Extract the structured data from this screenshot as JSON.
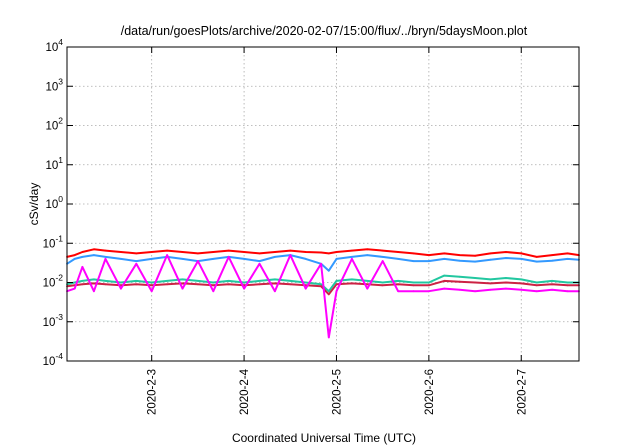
{
  "chart_data": {
    "type": "line",
    "title": "/data/run/goesPlots/archive/2020-02-07/15:00/flux/../bryn/5daysMoon.plot",
    "xlabel": "Coordinated Universal Time (UTC)",
    "ylabel": "cSv/day",
    "yscale": "log",
    "ylim": [
      0.0001,
      10000
    ],
    "yticks": [
      {
        "base": "10",
        "exp": "-4",
        "value": 0.0001
      },
      {
        "base": "10",
        "exp": "-3",
        "value": 0.001
      },
      {
        "base": "10",
        "exp": "-2",
        "value": 0.01
      },
      {
        "base": "10",
        "exp": "-1",
        "value": 0.1
      },
      {
        "base": "10",
        "exp": "0",
        "value": 1
      },
      {
        "base": "10",
        "exp": "1",
        "value": 10
      },
      {
        "base": "10",
        "exp": "2",
        "value": 100
      },
      {
        "base": "10",
        "exp": "3",
        "value": 1000
      },
      {
        "base": "10",
        "exp": "4",
        "value": 10000
      }
    ],
    "xlim": [
      "2020-02-02T02:00",
      "2020-02-07T15:00"
    ],
    "xticks": [
      {
        "label": "2020-2-3",
        "date": "2020-02-03T00:00"
      },
      {
        "label": "2020-2-4",
        "date": "2020-02-04T00:00"
      },
      {
        "label": "2020-2-5",
        "date": "2020-02-05T00:00"
      },
      {
        "label": "2020-2-6",
        "date": "2020-02-06T00:00"
      },
      {
        "label": "2020-2-7",
        "date": "2020-02-07T00:00"
      }
    ],
    "grid": true,
    "series": [
      {
        "color": "#ff0000",
        "x": [
          "2020-02-02T02:00",
          "2020-02-02T04:00",
          "2020-02-02T06:00",
          "2020-02-02T09:00",
          "2020-02-02T12:00",
          "2020-02-02T16:00",
          "2020-02-02T20:00",
          "2020-02-03T00:00",
          "2020-02-03T04:00",
          "2020-02-03T08:00",
          "2020-02-03T12:00",
          "2020-02-03T16:00",
          "2020-02-03T20:00",
          "2020-02-04T00:00",
          "2020-02-04T04:00",
          "2020-02-04T08:00",
          "2020-02-04T12:00",
          "2020-02-04T16:00",
          "2020-02-04T20:00",
          "2020-02-04T22:00",
          "2020-02-05T00:00",
          "2020-02-05T04:00",
          "2020-02-05T08:00",
          "2020-02-05T12:00",
          "2020-02-05T16:00",
          "2020-02-05T20:00",
          "2020-02-06T00:00",
          "2020-02-06T04:00",
          "2020-02-06T08:00",
          "2020-02-06T12:00",
          "2020-02-06T16:00",
          "2020-02-06T20:00",
          "2020-02-07T00:00",
          "2020-02-07T04:00",
          "2020-02-07T08:00",
          "2020-02-07T12:00",
          "2020-02-07T15:00"
        ],
        "values": [
          0.045,
          0.05,
          0.06,
          0.07,
          0.065,
          0.06,
          0.055,
          0.06,
          0.065,
          0.06,
          0.055,
          0.06,
          0.065,
          0.06,
          0.055,
          0.06,
          0.065,
          0.06,
          0.058,
          0.055,
          0.06,
          0.065,
          0.07,
          0.065,
          0.06,
          0.055,
          0.05,
          0.055,
          0.05,
          0.048,
          0.055,
          0.06,
          0.055,
          0.045,
          0.05,
          0.055,
          0.05
        ]
      },
      {
        "color": "#3399ff",
        "x": [
          "2020-02-02T02:00",
          "2020-02-02T04:00",
          "2020-02-02T06:00",
          "2020-02-02T09:00",
          "2020-02-02T12:00",
          "2020-02-02T16:00",
          "2020-02-02T20:00",
          "2020-02-03T00:00",
          "2020-02-03T04:00",
          "2020-02-03T08:00",
          "2020-02-03T12:00",
          "2020-02-03T16:00",
          "2020-02-03T20:00",
          "2020-02-04T00:00",
          "2020-02-04T04:00",
          "2020-02-04T08:00",
          "2020-02-04T12:00",
          "2020-02-04T16:00",
          "2020-02-04T20:00",
          "2020-02-04T22:00",
          "2020-02-05T00:00",
          "2020-02-05T04:00",
          "2020-02-05T08:00",
          "2020-02-05T12:00",
          "2020-02-05T16:00",
          "2020-02-05T20:00",
          "2020-02-06T00:00",
          "2020-02-06T04:00",
          "2020-02-06T08:00",
          "2020-02-06T12:00",
          "2020-02-06T16:00",
          "2020-02-06T20:00",
          "2020-02-07T00:00",
          "2020-02-07T04:00",
          "2020-02-07T08:00",
          "2020-02-07T12:00",
          "2020-02-07T15:00"
        ],
        "values": [
          0.03,
          0.04,
          0.045,
          0.05,
          0.045,
          0.04,
          0.035,
          0.04,
          0.045,
          0.04,
          0.035,
          0.04,
          0.045,
          0.04,
          0.035,
          0.045,
          0.05,
          0.04,
          0.03,
          0.02,
          0.04,
          0.045,
          0.05,
          0.045,
          0.04,
          0.035,
          0.035,
          0.04,
          0.036,
          0.034,
          0.038,
          0.042,
          0.04,
          0.034,
          0.036,
          0.04,
          0.038
        ]
      },
      {
        "color": "#22c7a0",
        "x": [
          "2020-02-02T02:00",
          "2020-02-02T04:00",
          "2020-02-02T06:00",
          "2020-02-02T09:00",
          "2020-02-02T12:00",
          "2020-02-02T16:00",
          "2020-02-02T20:00",
          "2020-02-03T00:00",
          "2020-02-03T04:00",
          "2020-02-03T08:00",
          "2020-02-03T12:00",
          "2020-02-03T16:00",
          "2020-02-03T20:00",
          "2020-02-04T00:00",
          "2020-02-04T04:00",
          "2020-02-04T08:00",
          "2020-02-04T12:00",
          "2020-02-04T16:00",
          "2020-02-04T20:00",
          "2020-02-04T22:00",
          "2020-02-05T00:00",
          "2020-02-05T04:00",
          "2020-02-05T08:00",
          "2020-02-05T12:00",
          "2020-02-05T16:00",
          "2020-02-05T20:00",
          "2020-02-06T00:00",
          "2020-02-06T04:00",
          "2020-02-06T08:00",
          "2020-02-06T12:00",
          "2020-02-06T16:00",
          "2020-02-06T20:00",
          "2020-02-07T00:00",
          "2020-02-07T04:00",
          "2020-02-07T08:00",
          "2020-02-07T12:00",
          "2020-02-07T15:00"
        ],
        "values": [
          0.009,
          0.01,
          0.011,
          0.012,
          0.011,
          0.01,
          0.011,
          0.01,
          0.011,
          0.012,
          0.011,
          0.01,
          0.011,
          0.01,
          0.011,
          0.012,
          0.011,
          0.01,
          0.009,
          0.006,
          0.011,
          0.012,
          0.011,
          0.01,
          0.011,
          0.01,
          0.01,
          0.015,
          0.014,
          0.013,
          0.012,
          0.013,
          0.012,
          0.01,
          0.011,
          0.01,
          0.01
        ]
      },
      {
        "color": "#cc2244",
        "x": [
          "2020-02-02T02:00",
          "2020-02-02T04:00",
          "2020-02-02T06:00",
          "2020-02-02T09:00",
          "2020-02-02T12:00",
          "2020-02-02T16:00",
          "2020-02-02T20:00",
          "2020-02-03T00:00",
          "2020-02-03T04:00",
          "2020-02-03T08:00",
          "2020-02-03T12:00",
          "2020-02-03T16:00",
          "2020-02-03T20:00",
          "2020-02-04T00:00",
          "2020-02-04T04:00",
          "2020-02-04T08:00",
          "2020-02-04T12:00",
          "2020-02-04T16:00",
          "2020-02-04T20:00",
          "2020-02-04T22:00",
          "2020-02-05T00:00",
          "2020-02-05T04:00",
          "2020-02-05T08:00",
          "2020-02-05T12:00",
          "2020-02-05T16:00",
          "2020-02-05T20:00",
          "2020-02-06T00:00",
          "2020-02-06T04:00",
          "2020-02-06T08:00",
          "2020-02-06T12:00",
          "2020-02-06T16:00",
          "2020-02-06T20:00",
          "2020-02-07T00:00",
          "2020-02-07T04:00",
          "2020-02-07T08:00",
          "2020-02-07T12:00",
          "2020-02-07T15:00"
        ],
        "values": [
          0.008,
          0.0085,
          0.009,
          0.0095,
          0.009,
          0.0085,
          0.009,
          0.0085,
          0.009,
          0.0095,
          0.009,
          0.0085,
          0.009,
          0.0085,
          0.009,
          0.0095,
          0.009,
          0.0085,
          0.008,
          0.005,
          0.009,
          0.0095,
          0.009,
          0.0085,
          0.009,
          0.0085,
          0.0085,
          0.011,
          0.0105,
          0.01,
          0.0095,
          0.01,
          0.0095,
          0.0085,
          0.009,
          0.0085,
          0.0085
        ]
      },
      {
        "color": "#ff00ff",
        "x": [
          "2020-02-02T02:00",
          "2020-02-02T04:00",
          "2020-02-02T06:00",
          "2020-02-02T09:00",
          "2020-02-02T12:00",
          "2020-02-02T16:00",
          "2020-02-02T20:00",
          "2020-02-03T00:00",
          "2020-02-03T04:00",
          "2020-02-03T08:00",
          "2020-02-03T12:00",
          "2020-02-03T16:00",
          "2020-02-03T20:00",
          "2020-02-04T00:00",
          "2020-02-04T04:00",
          "2020-02-04T08:00",
          "2020-02-04T12:00",
          "2020-02-04T16:00",
          "2020-02-04T20:00",
          "2020-02-04T22:00",
          "2020-02-05T00:00",
          "2020-02-05T04:00",
          "2020-02-05T08:00",
          "2020-02-05T12:00",
          "2020-02-05T16:00",
          "2020-02-05T20:00",
          "2020-02-06T00:00",
          "2020-02-06T04:00",
          "2020-02-06T08:00",
          "2020-02-06T12:00",
          "2020-02-06T16:00",
          "2020-02-06T20:00",
          "2020-02-07T00:00",
          "2020-02-07T04:00",
          "2020-02-07T08:00",
          "2020-02-07T12:00",
          "2020-02-07T15:00"
        ],
        "values": [
          0.006,
          0.007,
          0.025,
          0.006,
          0.04,
          0.007,
          0.03,
          0.006,
          0.05,
          0.007,
          0.035,
          0.006,
          0.045,
          0.007,
          0.03,
          0.006,
          0.05,
          0.007,
          0.03,
          0.0004,
          0.006,
          0.04,
          0.007,
          0.035,
          0.006,
          0.006,
          0.006,
          0.007,
          0.0065,
          0.006,
          0.0065,
          0.007,
          0.0065,
          0.006,
          0.0065,
          0.006,
          0.006
        ]
      }
    ]
  }
}
